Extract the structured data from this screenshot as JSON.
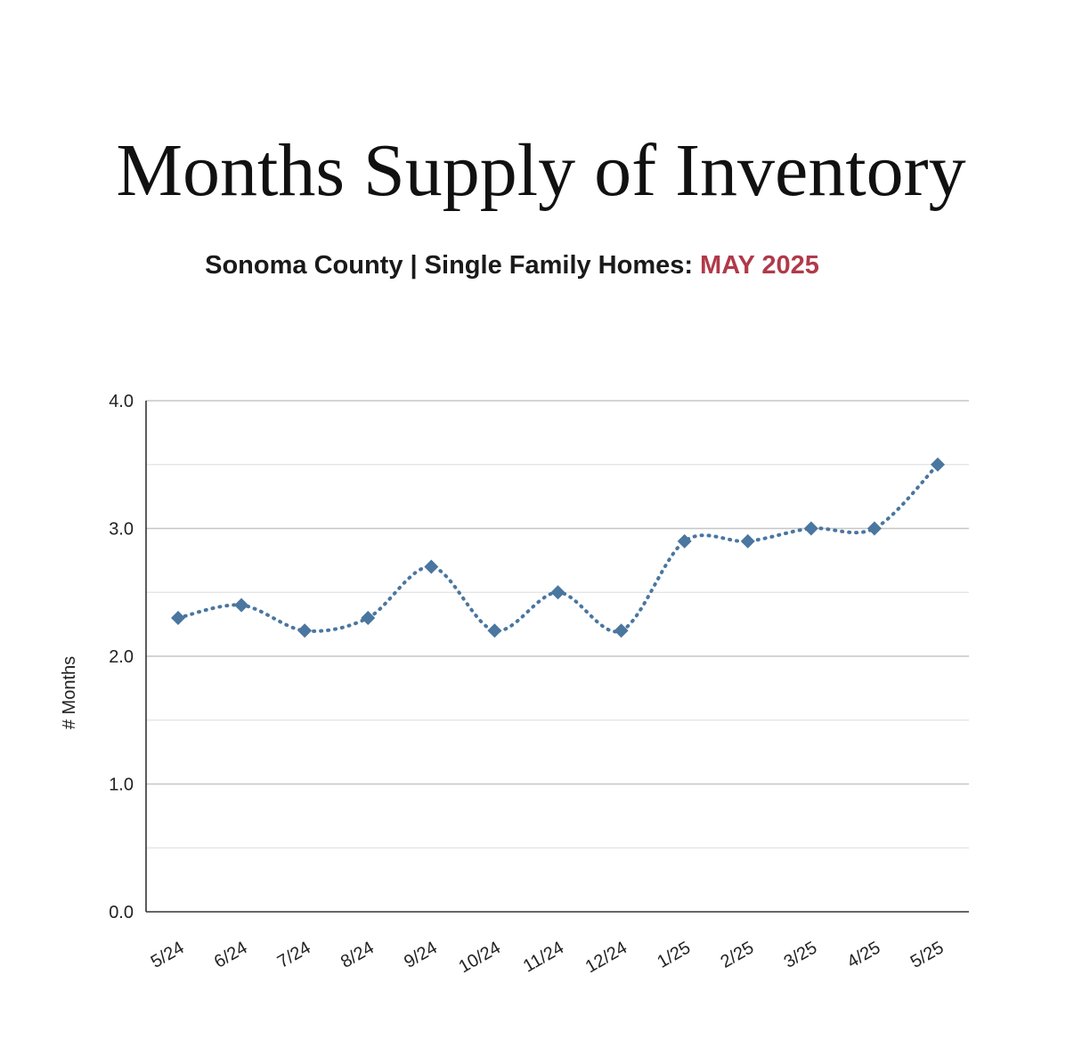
{
  "header": {
    "title": "Months Supply of Inventory",
    "subtitle_main": "Sonoma County | Single Family Homes:",
    "subtitle_date": "MAY 2025"
  },
  "colors": {
    "accent": "#b03a4a",
    "series": "#4a76a0",
    "grid": "#cccccc",
    "axis": "#333333"
  },
  "chart_data": {
    "type": "line",
    "title": "Months Supply of Inventory",
    "ylabel": "# Months",
    "xlabel": "",
    "ylim": [
      0,
      4
    ],
    "y_ticks": [
      "0.0",
      "1.0",
      "2.0",
      "3.0",
      "4.0"
    ],
    "grid": true,
    "line_style": "dotted",
    "marker": "diamond",
    "categories": [
      "5/24",
      "6/24",
      "7/24",
      "8/24",
      "9/24",
      "10/24",
      "11/24",
      "12/24",
      "1/25",
      "2/25",
      "3/25",
      "4/25",
      "5/25"
    ],
    "series": [
      {
        "values": [
          2.3,
          2.4,
          2.2,
          2.3,
          2.7,
          2.2,
          2.5,
          2.2,
          2.9,
          2.9,
          3.0,
          3.0,
          3.5
        ]
      }
    ]
  }
}
